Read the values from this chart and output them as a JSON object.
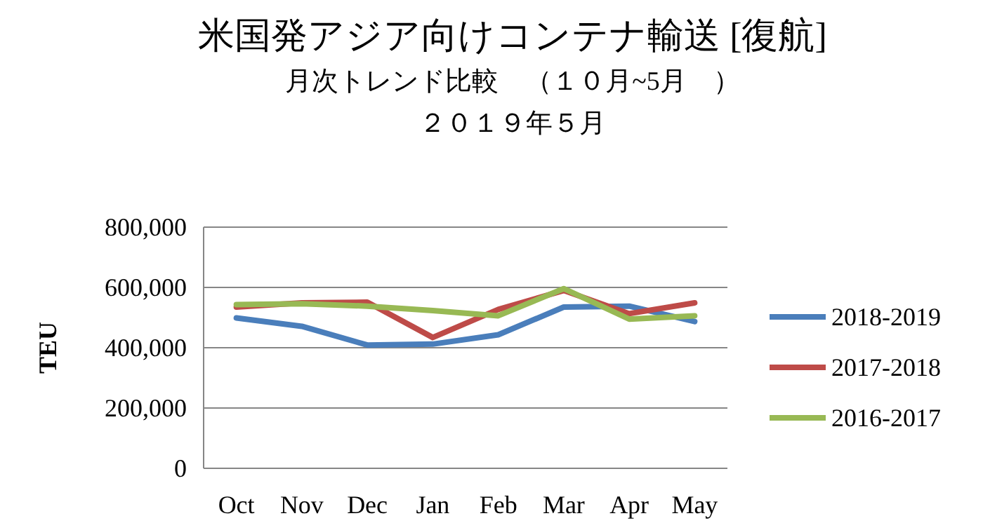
{
  "chart_data": {
    "type": "line",
    "title": "米国発アジア向けコンテナ輸送 [復航]",
    "subtitle": "月次トレンド比較　（１０月~5月　）",
    "annotations": [
      "２０１９年５月"
    ],
    "ylabel": "TEU",
    "categories": [
      "Oct",
      "Nov",
      "Dec",
      "Jan",
      "Feb",
      "Mar",
      "Apr",
      "May"
    ],
    "series": [
      {
        "name": "2018-2019",
        "color": "#4a7ebb",
        "values": [
          499000,
          471000,
          409000,
          412000,
          443000,
          535000,
          538000,
          487000
        ]
      },
      {
        "name": "2017-2018",
        "color": "#be4b48",
        "values": [
          535000,
          549000,
          551000,
          434000,
          527000,
          590000,
          513000,
          549000
        ]
      },
      {
        "name": "2016-2017",
        "color": "#98b954",
        "values": [
          543000,
          546000,
          538000,
          523000,
          506000,
          596000,
          495000,
          506000
        ]
      }
    ],
    "ylim": [
      0,
      800000
    ],
    "yticks": [
      {
        "value": 0,
        "label": "0"
      },
      {
        "value": 200000,
        "label": "200,000"
      },
      {
        "value": 400000,
        "label": "400,000"
      },
      {
        "value": 600000,
        "label": "600,000"
      },
      {
        "value": 800000,
        "label": "800,000"
      }
    ],
    "grid": "y",
    "legend": "right",
    "marker": "none",
    "line_style": "solid"
  }
}
